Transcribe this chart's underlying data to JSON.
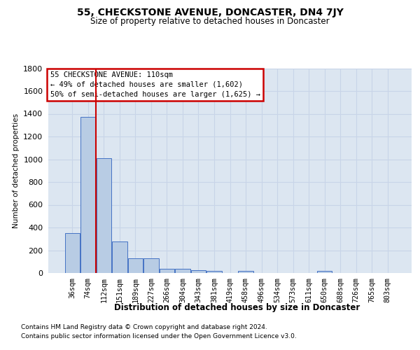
{
  "title": "55, CHECKSTONE AVENUE, DONCASTER, DN4 7JY",
  "subtitle": "Size of property relative to detached houses in Doncaster",
  "xlabel": "Distribution of detached houses by size in Doncaster",
  "ylabel": "Number of detached properties",
  "footnote1": "Contains HM Land Registry data © Crown copyright and database right 2024.",
  "footnote2": "Contains public sector information licensed under the Open Government Licence v3.0.",
  "bin_labels": [
    "36sqm",
    "74sqm",
    "112sqm",
    "151sqm",
    "189sqm",
    "227sqm",
    "266sqm",
    "304sqm",
    "343sqm",
    "381sqm",
    "419sqm",
    "458sqm",
    "496sqm",
    "534sqm",
    "573sqm",
    "611sqm",
    "650sqm",
    "688sqm",
    "726sqm",
    "765sqm",
    "803sqm"
  ],
  "bar_values": [
    350,
    1370,
    1010,
    280,
    128,
    128,
    38,
    38,
    25,
    20,
    0,
    20,
    0,
    0,
    0,
    0,
    20,
    0,
    0,
    0,
    0
  ],
  "bar_color": "#b8cce4",
  "bar_edge_color": "#4472c4",
  "grid_color": "#c8d4e8",
  "bg_color": "#dce6f1",
  "red_line_x": 1.5,
  "annotation_line1": "55 CHECKSTONE AVENUE: 110sqm",
  "annotation_line2": "← 49% of detached houses are smaller (1,602)",
  "annotation_line3": "50% of semi-detached houses are larger (1,625) →",
  "annotation_box_color": "#ffffff",
  "annotation_box_edge_color": "#cc0000",
  "red_line_color": "#cc0000",
  "ylim": [
    0,
    1800
  ],
  "yticks": [
    0,
    200,
    400,
    600,
    800,
    1000,
    1200,
    1400,
    1600,
    1800
  ]
}
